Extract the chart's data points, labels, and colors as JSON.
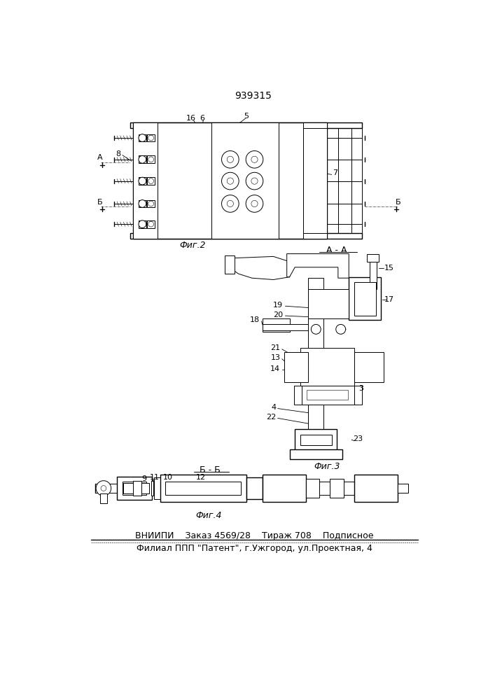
{
  "patent_number": "939315",
  "fig2_label": "Фиг.2",
  "fig3_label": "Фиг.3",
  "fig4_label": "Фиг.4",
  "aa_label": "A - A",
  "bb_label": "Б - Б",
  "footer_line1": "ВНИИПИ    Заказ 4569/28    Тираж 708    Подписное",
  "footer_line2": "Филиал ППП \"Патент\", г.Ужгород, ул.Проектная, 4",
  "bg_color": "#ffffff"
}
